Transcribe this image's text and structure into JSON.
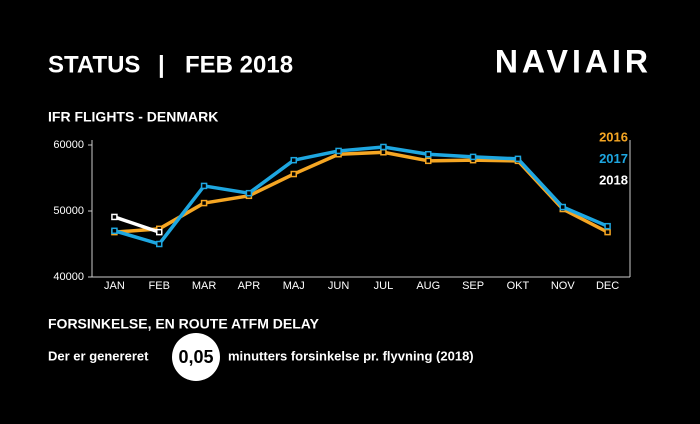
{
  "header": {
    "left": "STATUS",
    "separator": "|",
    "right": "FEB 2018",
    "logo": "NAVIAIR"
  },
  "chart_data": {
    "type": "line",
    "title": "IFR FLIGHTS - DENMARK",
    "categories": [
      "JAN",
      "FEB",
      "MAR",
      "APR",
      "MAJ",
      "JUN",
      "JUL",
      "AUG",
      "SEP",
      "OKT",
      "NOV",
      "DEC"
    ],
    "series": [
      {
        "name": "2016",
        "color": "#f5a623",
        "values": [
          46800,
          47300,
          51200,
          52300,
          55600,
          58600,
          58900,
          57600,
          57700,
          57600,
          50300,
          46800
        ]
      },
      {
        "name": "2017",
        "color": "#1ea7e1",
        "values": [
          47000,
          45000,
          53800,
          52700,
          57700,
          59100,
          59700,
          58600,
          58200,
          57900,
          50600,
          47700
        ]
      },
      {
        "name": "2018",
        "color": "#ffffff",
        "values": [
          49100,
          46800,
          null,
          null,
          null,
          null,
          null,
          null,
          null,
          null,
          null,
          null
        ]
      }
    ],
    "ylim": [
      40000,
      60000
    ],
    "yticks": [
      40000,
      50000,
      60000
    ],
    "legend": "right"
  },
  "delay": {
    "heading": "FORSINKELSE, EN ROUTE ATFM DELAY",
    "before": "Der er genereret",
    "value": "0,05",
    "after": "minutters forsinkelse pr. flyvning (2018)"
  }
}
